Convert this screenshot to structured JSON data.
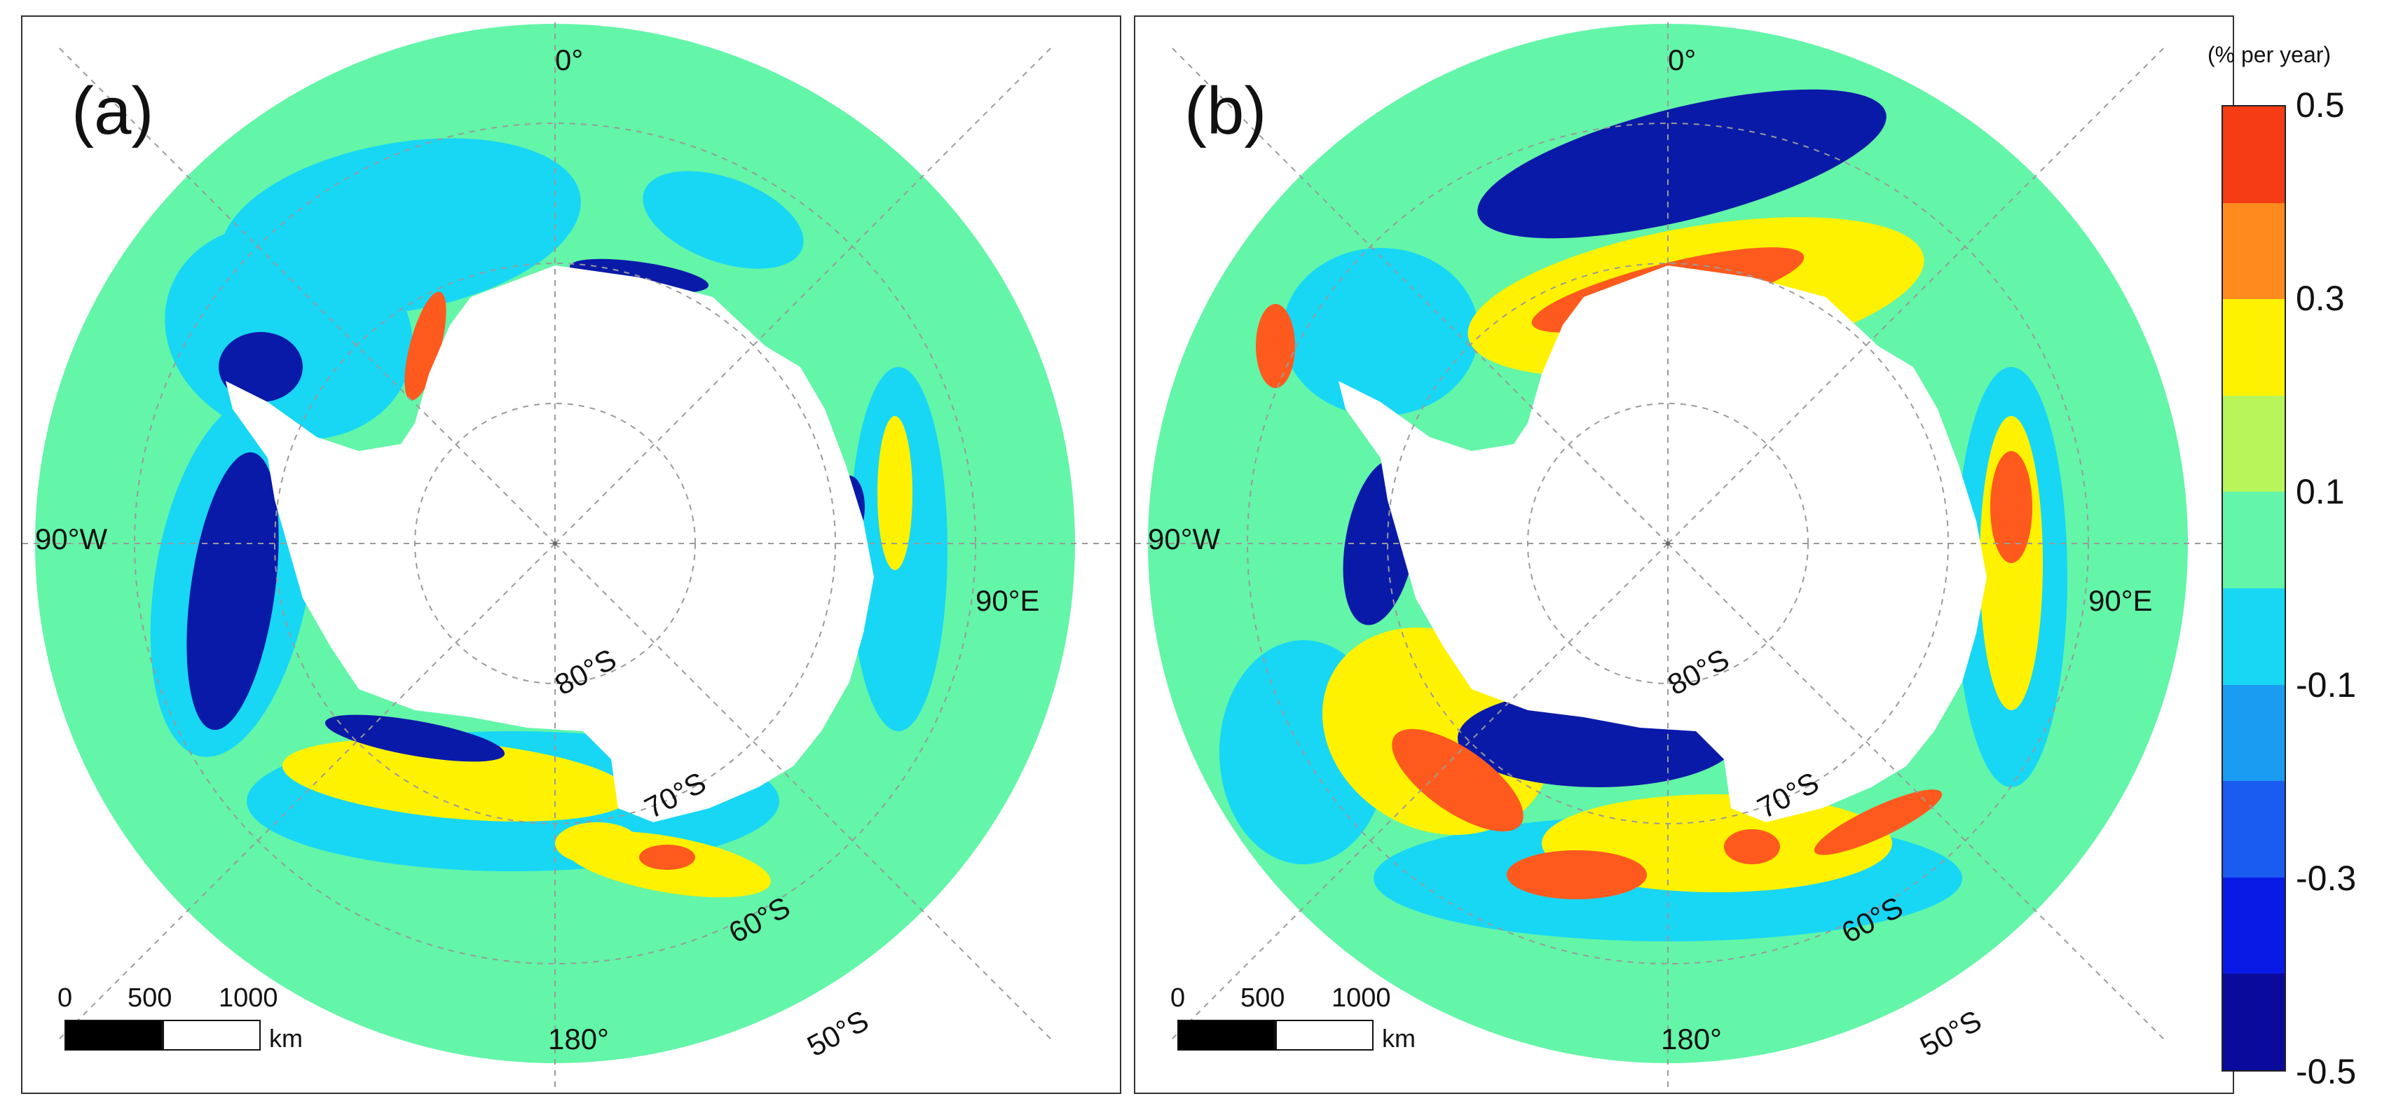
{
  "colors": {
    "ocean": "#63f5a8",
    "land": "#ffffff",
    "grid": "#9a9a9a",
    "orange_red": "#ff5a1e",
    "deep_blue": "#0a1aa8",
    "cyan": "#17d7f5",
    "yellow": "#fff200"
  },
  "panels": [
    {
      "label": "(a)",
      "lat_labels": [
        "80°S",
        "70°S",
        "60°S",
        "50°S"
      ],
      "lon_labels": {
        "top": "0°",
        "left": "90°W",
        "right": "90°E",
        "bottom": "180°"
      },
      "scalebar": {
        "ticks": [
          "0",
          "500",
          "1000"
        ],
        "unit": "km"
      },
      "trend": "mixed_negative"
    },
    {
      "label": "(b)",
      "lat_labels": [
        "80°S",
        "70°S",
        "60°S",
        "50°S"
      ],
      "lon_labels": {
        "top": "0°",
        "left": "90°W",
        "right": "90°E",
        "bottom": "180°"
      },
      "scalebar": {
        "ticks": [
          "0",
          "500",
          "1000"
        ],
        "unit": "km"
      },
      "trend": "strong_dipole"
    }
  ],
  "colorbar": {
    "title": "(% per year)",
    "tick_labels": [
      "0.5",
      "0.3",
      "0.1",
      "-0.1",
      "-0.3",
      "-0.5"
    ],
    "tick_values": [
      0.5,
      0.3,
      0.1,
      -0.1,
      -0.3,
      -0.5
    ],
    "min": -0.5,
    "max": 0.5,
    "segments": [
      "#f53c14",
      "#ff8a1e",
      "#fff200",
      "#b8f55a",
      "#63f5a8",
      "#17d7f5",
      "#1a9cf2",
      "#1a5cf0",
      "#0a1ae6",
      "#0a0a9c"
    ]
  }
}
